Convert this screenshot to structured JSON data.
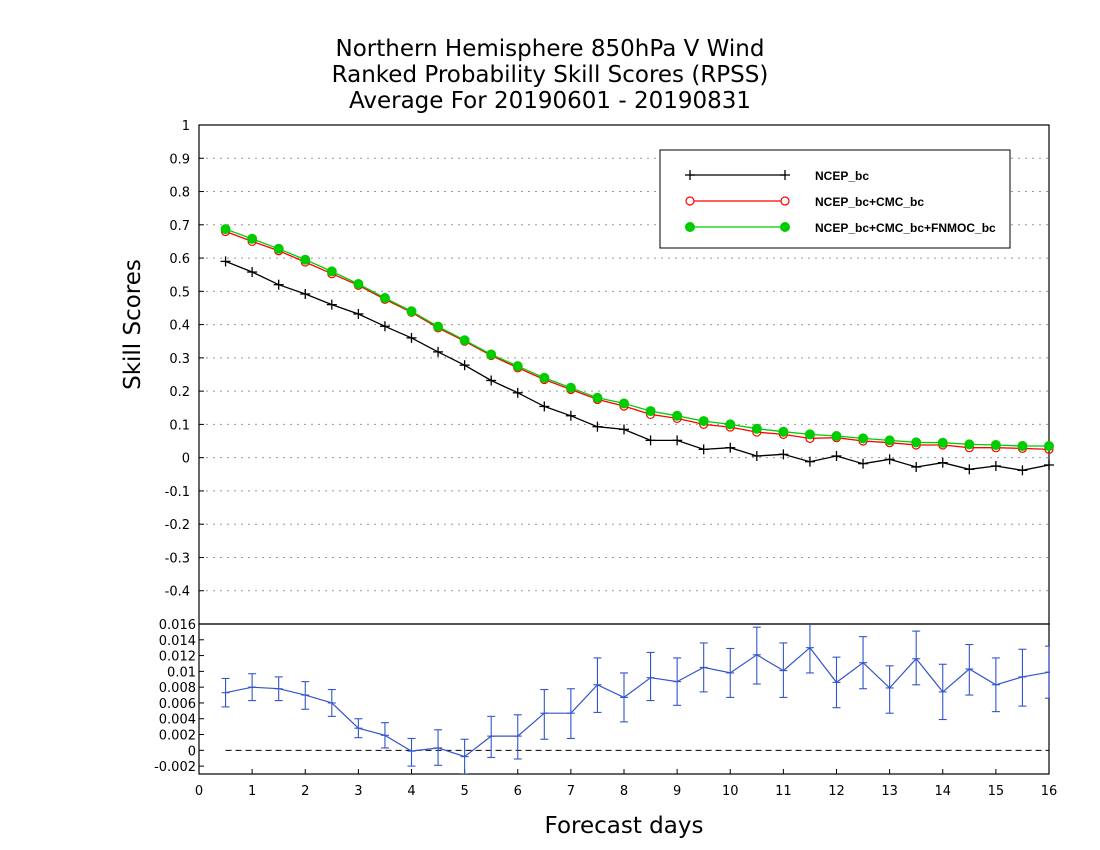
{
  "title": [
    "Northern Hemisphere 850hPa V Wind",
    "Ranked Probability Skill Scores (RPSS)",
    "Average For 20190601 - 20190831"
  ],
  "chart_data": [
    {
      "type": "line",
      "panel": "main",
      "ylabel": "Skill Scores",
      "xlim": [
        0,
        16
      ],
      "ylim": [
        -0.5,
        1
      ],
      "yticks": [
        -0.4,
        -0.3,
        -0.2,
        -0.1,
        0,
        0.1,
        0.2,
        0.3,
        0.4,
        0.5,
        0.6,
        0.7,
        0.8,
        0.9,
        1
      ],
      "yticklabels": [
        "-0.4",
        "-0.3",
        "-0.2",
        "-0.1",
        "0",
        "0.1",
        "0.2",
        "0.3",
        "0.4",
        "0.5",
        "0.6",
        "0.7",
        "0.8",
        "0.9",
        "1"
      ],
      "grid": true,
      "legend_position": "top-right",
      "x": [
        0.5,
        1,
        1.5,
        2,
        2.5,
        3,
        3.5,
        4,
        4.5,
        5,
        5.5,
        6,
        6.5,
        7,
        7.5,
        8,
        8.5,
        9,
        9.5,
        10,
        10.5,
        11,
        11.5,
        12,
        12.5,
        13,
        13.5,
        14,
        14.5,
        15,
        15.5,
        16
      ],
      "series": [
        {
          "name": "NCEP_bc",
          "color": "#000000",
          "marker": "plus",
          "values": [
            0.59,
            0.558,
            0.52,
            0.492,
            0.46,
            0.432,
            0.395,
            0.36,
            0.318,
            0.278,
            0.232,
            0.195,
            0.154,
            0.126,
            0.093,
            0.085,
            0.052,
            0.052,
            0.025,
            0.03,
            0.005,
            0.01,
            -0.012,
            0.005,
            -0.018,
            -0.005,
            -0.028,
            -0.015,
            -0.035,
            -0.025,
            -0.038,
            -0.022
          ]
        },
        {
          "name": "NCEP_bc+CMC_bc",
          "color": "#ff0000",
          "marker": "open-circle",
          "values": [
            0.68,
            0.65,
            0.622,
            0.588,
            0.553,
            0.518,
            0.476,
            0.437,
            0.39,
            0.35,
            0.307,
            0.27,
            0.235,
            0.205,
            0.175,
            0.155,
            0.13,
            0.118,
            0.1,
            0.092,
            0.077,
            0.07,
            0.058,
            0.06,
            0.05,
            0.045,
            0.038,
            0.038,
            0.03,
            0.03,
            0.028,
            0.025
          ]
        },
        {
          "name": "NCEP_bc+CMC_bc+FNMOC_bc",
          "color": "#00cc00",
          "marker": "filled-circle",
          "values": [
            0.687,
            0.658,
            0.628,
            0.595,
            0.56,
            0.522,
            0.48,
            0.44,
            0.394,
            0.353,
            0.31,
            0.275,
            0.24,
            0.21,
            0.18,
            0.163,
            0.14,
            0.126,
            0.11,
            0.1,
            0.087,
            0.078,
            0.07,
            0.065,
            0.058,
            0.052,
            0.046,
            0.045,
            0.04,
            0.038,
            0.035,
            0.035
          ]
        }
      ]
    },
    {
      "type": "line",
      "panel": "difference",
      "xlabel": "Forecast days",
      "xlim": [
        0,
        16
      ],
      "xticks": [
        0,
        1,
        2,
        3,
        4,
        5,
        6,
        7,
        8,
        9,
        10,
        11,
        12,
        13,
        14,
        15,
        16
      ],
      "xticklabels": [
        "0",
        "1",
        "2",
        "3",
        "4",
        "5",
        "6",
        "7",
        "8",
        "9",
        "10",
        "11",
        "12",
        "13",
        "14",
        "15",
        "16"
      ],
      "ylim": [
        -0.003,
        0.016
      ],
      "yticks": [
        -0.002,
        0,
        0.002,
        0.004,
        0.006,
        0.008,
        0.01,
        0.012,
        0.014,
        0.016
      ],
      "yticklabels": [
        "-0.002",
        "0",
        "0.002",
        "0.004",
        "0.006",
        "0.008",
        "0.01",
        "0.012",
        "0.014",
        "0.016"
      ],
      "zero_line": true,
      "color": "#3355cc",
      "x": [
        0.5,
        1,
        1.5,
        2,
        2.5,
        3,
        3.5,
        4,
        4.5,
        5,
        5.5,
        6,
        6.5,
        7,
        7.5,
        8,
        8.5,
        9,
        9.5,
        10,
        10.5,
        11,
        11.5,
        12,
        12.5,
        13,
        13.5,
        14,
        14.5,
        15,
        15.5,
        16
      ],
      "values": [
        0.0073,
        0.008,
        0.0078,
        0.007,
        0.006,
        0.0028,
        0.0019,
        -0.0001,
        0.0003,
        -0.0008,
        0.0018,
        0.0018,
        0.0047,
        0.0047,
        0.0083,
        0.0067,
        0.0092,
        0.0087,
        0.0105,
        0.0098,
        0.0121,
        0.0101,
        0.013,
        0.0086,
        0.0111,
        0.0079,
        0.0116,
        0.0074,
        0.0103,
        0.0083,
        0.0093,
        0.0099
      ],
      "error_low": [
        0.0055,
        0.0063,
        0.0063,
        0.0052,
        0.0043,
        0.0016,
        0.0003,
        -0.002,
        -0.0019,
        -0.003,
        -0.0009,
        -0.0011,
        0.0014,
        0.0015,
        0.0048,
        0.0036,
        0.0063,
        0.0057,
        0.0074,
        0.0067,
        0.0084,
        0.0067,
        0.0098,
        0.0054,
        0.0078,
        0.0047,
        0.0083,
        0.0039,
        0.007,
        0.0049,
        0.0056,
        0.0066
      ],
      "error_high": [
        0.0091,
        0.0097,
        0.0093,
        0.0087,
        0.0077,
        0.004,
        0.0035,
        0.0015,
        0.0026,
        0.0014,
        0.0043,
        0.0045,
        0.0077,
        0.0078,
        0.0117,
        0.0098,
        0.0124,
        0.0117,
        0.0136,
        0.0129,
        0.0156,
        0.0136,
        0.0165,
        0.0118,
        0.0144,
        0.0107,
        0.0151,
        0.0109,
        0.0134,
        0.0117,
        0.0128,
        0.0132
      ]
    }
  ]
}
